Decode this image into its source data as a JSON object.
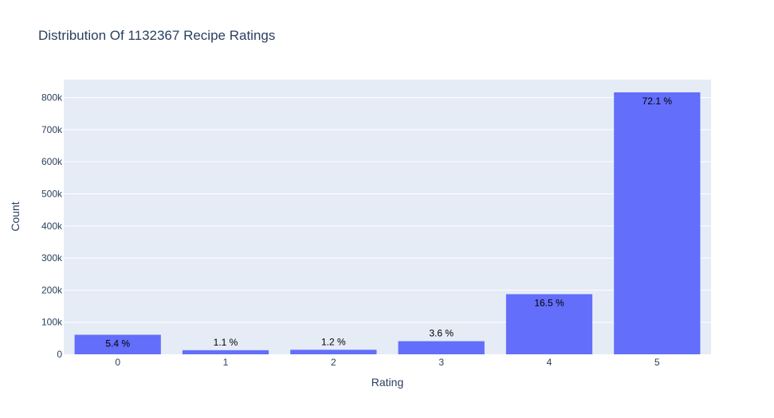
{
  "chart_data": {
    "type": "bar",
    "title": "Distribution Of 1132367 Recipe Ratings",
    "xlabel": "Rating",
    "ylabel": "Count",
    "categories": [
      "0",
      "1",
      "2",
      "3",
      "4",
      "5"
    ],
    "values": [
      60847,
      12818,
      14123,
      40855,
      187360,
      816364
    ],
    "data_labels": [
      "5.4 %",
      "1.1 %",
      "1.2 %",
      "3.6 %",
      "16.5 %",
      "72.1 %"
    ],
    "label_position": [
      "inside",
      "outside",
      "outside",
      "outside",
      "inside",
      "inside"
    ],
    "ylim": [
      0,
      856000
    ],
    "yticks": [
      0,
      100000,
      200000,
      300000,
      400000,
      500000,
      600000,
      700000,
      800000
    ],
    "ytick_labels": [
      "0",
      "100k",
      "200k",
      "300k",
      "400k",
      "500k",
      "600k",
      "700k",
      "800k"
    ],
    "grid": true,
    "colors": {
      "bar": "#636efa",
      "plot_bg": "#e5ecf6",
      "grid": "#ffffff",
      "text": "#2a3f5f",
      "label": "#000000"
    }
  }
}
